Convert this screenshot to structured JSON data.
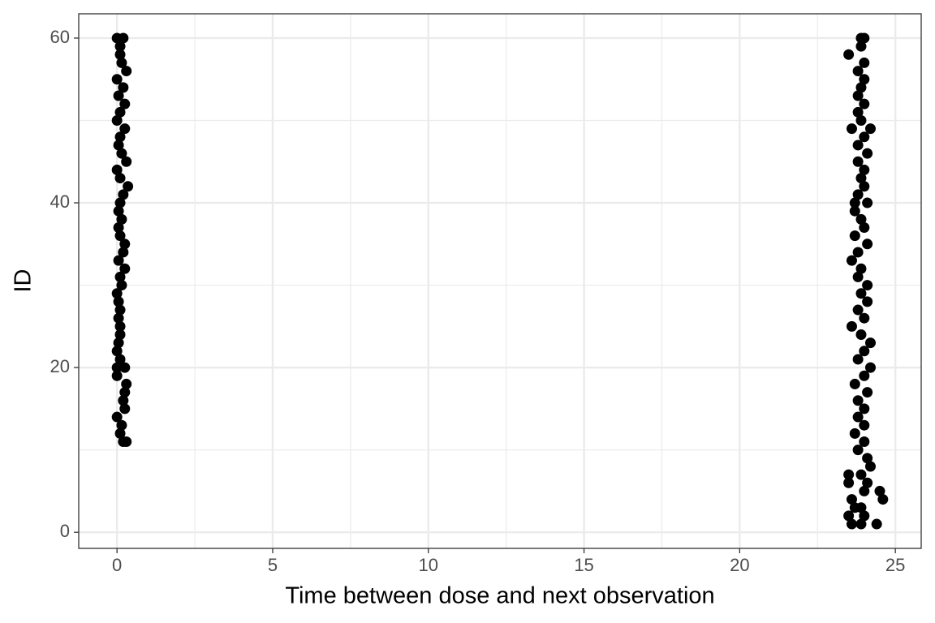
{
  "chart_data": {
    "type": "scatter",
    "x_label": "Time between dose and next observation",
    "y_label": "ID",
    "x": [
      0.0,
      0.2,
      0.1,
      0.1,
      0.15,
      0.3,
      0.0,
      0.2,
      0.05,
      0.25,
      0.1,
      0.0,
      0.25,
      0.1,
      0.05,
      0.15,
      0.3,
      0.0,
      0.1,
      0.35,
      0.2,
      0.1,
      0.05,
      0.15,
      0.05,
      0.1,
      0.25,
      0.2,
      0.05,
      0.25,
      0.1,
      0.15,
      0.0,
      0.05,
      0.1,
      0.05,
      0.1,
      0.1,
      0.05,
      0.0,
      0.1,
      0.0,
      0.25,
      0.0,
      0.3,
      0.25,
      0.2,
      0.25,
      0.0,
      0.15,
      0.1,
      0.2,
      0.3,
      23.9,
      24.0,
      23.9,
      23.5,
      24.0,
      23.8,
      24.0,
      23.9,
      23.8,
      24.0,
      23.8,
      23.9,
      23.6,
      24.2,
      24.0,
      23.8,
      24.1,
      23.8,
      24.0,
      23.9,
      24.0,
      23.8,
      23.7,
      24.1,
      23.7,
      23.9,
      24.0,
      23.7,
      24.1,
      23.8,
      23.6,
      23.9,
      23.8,
      24.1,
      23.9,
      24.1,
      23.8,
      24.0,
      23.6,
      23.9,
      24.2,
      24.0,
      23.8,
      24.2,
      24.0,
      23.7,
      24.1,
      23.8,
      24.0,
      23.8,
      24.0,
      23.7,
      24.0,
      23.8,
      24.1,
      24.2,
      23.5,
      23.9,
      23.5,
      24.1,
      24.0,
      24.5,
      23.6,
      24.6,
      23.9,
      23.7,
      23.5,
      24.0,
      23.6,
      23.9,
      24.4
    ],
    "values": [
      60,
      60,
      59,
      58,
      57,
      56,
      55,
      54,
      53,
      52,
      51,
      50,
      49,
      48,
      47,
      46,
      45,
      44,
      43,
      42,
      41,
      40,
      39,
      38,
      37,
      36,
      35,
      34,
      33,
      32,
      31,
      30,
      29,
      28,
      27,
      26,
      25,
      24,
      23,
      22,
      21,
      20,
      20,
      19,
      18,
      17,
      16,
      15,
      14,
      13,
      12,
      11,
      11,
      60,
      60,
      59,
      58,
      57,
      56,
      55,
      54,
      53,
      52,
      51,
      50,
      49,
      49,
      48,
      47,
      46,
      45,
      44,
      43,
      42,
      41,
      40,
      40,
      39,
      38,
      37,
      36,
      35,
      34,
      33,
      32,
      31,
      30,
      29,
      28,
      27,
      26,
      25,
      24,
      23,
      22,
      21,
      20,
      19,
      18,
      17,
      16,
      15,
      14,
      13,
      12,
      11,
      10,
      9,
      8,
      7,
      7,
      6,
      6,
      5,
      5,
      4,
      4,
      3,
      3,
      2,
      2,
      1,
      1,
      1
    ],
    "color": "#000000",
    "xlim": [
      -1.23,
      25.83
    ],
    "xticks": [
      0,
      5,
      10,
      15,
      20,
      25
    ],
    "ylim": [
      -1.95,
      62.95
    ],
    "yticks": [
      0,
      20,
      40,
      60
    ],
    "grid": true,
    "minor_grid": true
  }
}
